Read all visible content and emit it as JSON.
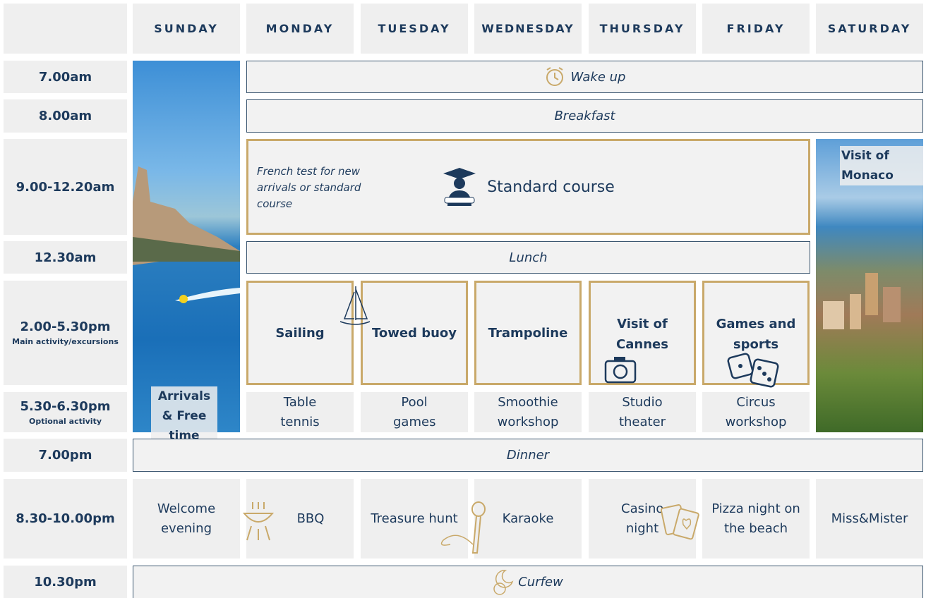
{
  "days": [
    "SUNDAY",
    "MONDAY",
    "TUESDAY",
    "WEDNESDAY",
    "THURSDAY",
    "FRIDAY",
    "SATURDAY"
  ],
  "times": [
    {
      "label": "7.00am"
    },
    {
      "label": "8.00am"
    },
    {
      "label": "9.00-12.20am"
    },
    {
      "label": "12.30am"
    },
    {
      "label": "2.00-5.30pm",
      "note": "Main activity/excursions"
    },
    {
      "label": "5.30-6.30pm",
      "note": "Optional activity"
    },
    {
      "label": "7.00pm"
    },
    {
      "label": "8.30-10.00pm"
    },
    {
      "label": "10.30pm"
    }
  ],
  "wake_up": "Wake up",
  "breakfast": "Breakfast",
  "french_test": "French test for new arrivals or standard course",
  "standard_course": "Standard course",
  "lunch": "Lunch",
  "sunday": "Arrivals & Free time",
  "saturday": "Visit of Monaco",
  "activities": [
    "Sailing",
    "Towed buoy",
    "Trampoline",
    "Visit of Cannes",
    "Games and sports"
  ],
  "optional": [
    "Table tennis",
    "Pool games",
    "Smoothie workshop",
    "Studio theater",
    "Circus workshop"
  ],
  "dinner": "Dinner",
  "evenings": [
    "Welcome evening",
    "BBQ",
    "Treasure hunt",
    "Karaoke",
    "Casino night",
    "Pizza night on the beach",
    "Miss&Mister"
  ],
  "curfew": "Curfew"
}
